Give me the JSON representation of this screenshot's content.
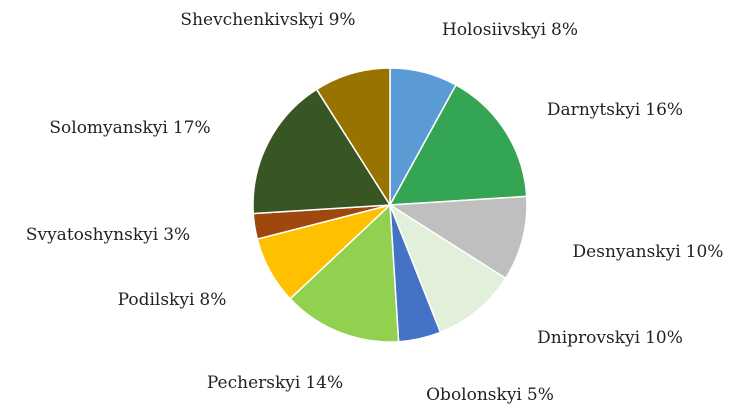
{
  "chart_data": {
    "type": "pie",
    "categories": [
      "Holosiivskyi",
      "Darnytskyi",
      "Desnyanskyi",
      "Dniprovskyi",
      "Obolonskyi",
      "Pecherskyi",
      "Podilskyi",
      "Svyatoshynskyi",
      "Solomyanskyi",
      "Shevchenkivskyi"
    ],
    "values": [
      8,
      16,
      10,
      10,
      5,
      14,
      8,
      3,
      17,
      9
    ],
    "value_labels": [
      "8%",
      "16%",
      "10%",
      "10%",
      "5%",
      "14%",
      "8%",
      "3%",
      "17%",
      "9%"
    ],
    "colors": [
      "#5b9bd5",
      "#34a552",
      "#bfbfbf",
      "#e2efda",
      "#4472c4",
      "#92d050",
      "#ffc000",
      "#9e480e",
      "#375623",
      "#997300"
    ]
  }
}
